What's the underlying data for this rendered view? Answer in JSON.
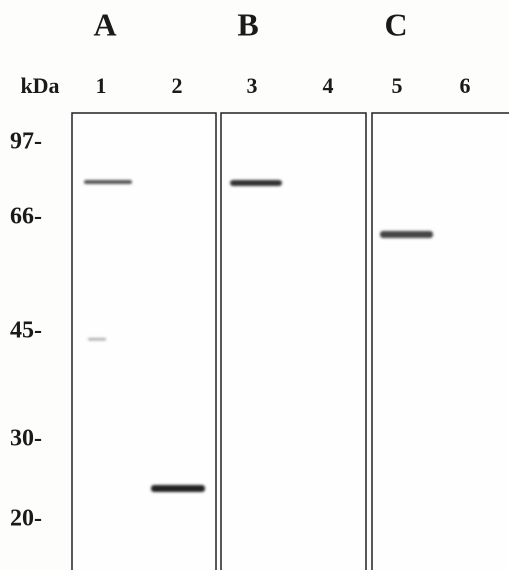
{
  "panels": [
    {
      "label": "A",
      "lanes": [
        "1",
        "2"
      ]
    },
    {
      "label": "B",
      "lanes": [
        "3",
        "4"
      ]
    },
    {
      "label": "C",
      "lanes": [
        "5",
        "6"
      ]
    }
  ],
  "marker_unit": "kDa",
  "markers": [
    "97-",
    "66-",
    "45-",
    "30-",
    "20-"
  ]
}
